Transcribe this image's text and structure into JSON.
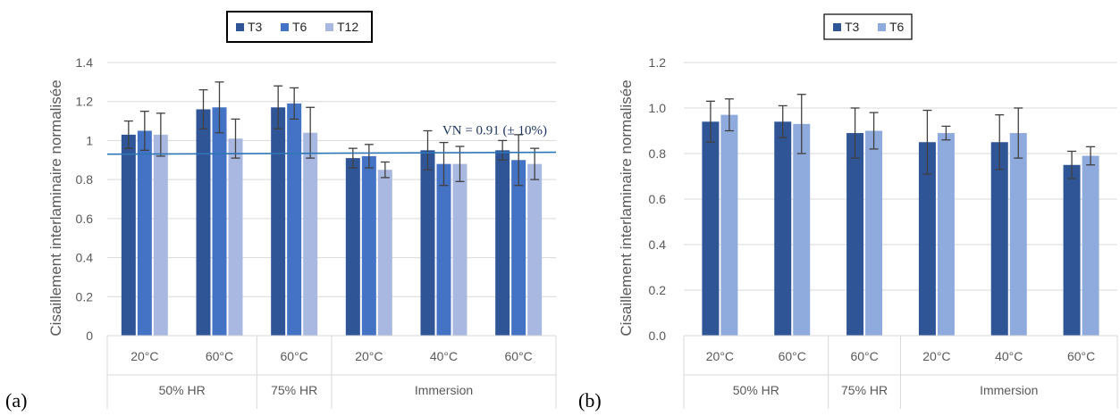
{
  "panels": [
    {
      "label": "(a)"
    },
    {
      "label": "(b)"
    }
  ],
  "chart_data": [
    {
      "type": "bar",
      "ylabel": "Cisaillement interlaminaire normalisée",
      "ylim": [
        0,
        1.4
      ],
      "yticks": [
        "0",
        "0.2",
        "0.4",
        "0.6",
        "0.8",
        "1",
        "1.2",
        "1.4"
      ],
      "gridlines": true,
      "legend_position": "top",
      "categories": [
        "20°C",
        "60°C",
        "60°C",
        "20°C",
        "40°C",
        "60°C"
      ],
      "groups": [
        {
          "label": "50% HR",
          "count": 2
        },
        {
          "label": "75% HR",
          "count": 1
        },
        {
          "label": "Immersion",
          "count": 3
        }
      ],
      "series": [
        {
          "name": "T3",
          "color": "#2f5597",
          "values": [
            1.03,
            1.16,
            1.17,
            0.91,
            0.95,
            0.95
          ],
          "errors": [
            0.07,
            0.1,
            0.11,
            0.05,
            0.1,
            0.05
          ]
        },
        {
          "name": "T6",
          "color": "#4472c4",
          "values": [
            1.05,
            1.17,
            1.19,
            0.92,
            0.88,
            0.9
          ],
          "errors": [
            0.1,
            0.13,
            0.08,
            0.06,
            0.11,
            0.13
          ]
        },
        {
          "name": "T12",
          "color": "#a9b8e0",
          "values": [
            1.03,
            1.01,
            1.04,
            0.85,
            0.88,
            0.88
          ],
          "errors": [
            0.11,
            0.1,
            0.13,
            0.04,
            0.09,
            0.08
          ]
        }
      ],
      "reference_line": {
        "label": "VN = 0.91 (± 10%)",
        "y_start": 0.93,
        "y_end": 0.94,
        "color": "#2e75b6"
      }
    },
    {
      "type": "bar",
      "ylabel": "Cisaillement interlaminaire normalisée",
      "ylim": [
        0,
        1.2
      ],
      "yticks": [
        "0.0",
        "0.2",
        "0.4",
        "0.6",
        "0.8",
        "1.0",
        "1.2"
      ],
      "gridlines": true,
      "legend_position": "top",
      "categories": [
        "20°C",
        "60°C",
        "60°C",
        "20°C",
        "40°C",
        "60°C"
      ],
      "groups": [
        {
          "label": "50% HR",
          "count": 2
        },
        {
          "label": "75% HR",
          "count": 1
        },
        {
          "label": "Immersion",
          "count": 3
        }
      ],
      "series": [
        {
          "name": "T3",
          "color": "#2f5597",
          "values": [
            0.94,
            0.94,
            0.89,
            0.85,
            0.85,
            0.75
          ],
          "errors": [
            0.09,
            0.07,
            0.11,
            0.14,
            0.12,
            0.06
          ]
        },
        {
          "name": "T6",
          "color": "#8faadc",
          "values": [
            0.97,
            0.93,
            0.9,
            0.89,
            0.89,
            0.79
          ],
          "errors": [
            0.07,
            0.13,
            0.08,
            0.03,
            0.11,
            0.04
          ]
        }
      ]
    }
  ]
}
